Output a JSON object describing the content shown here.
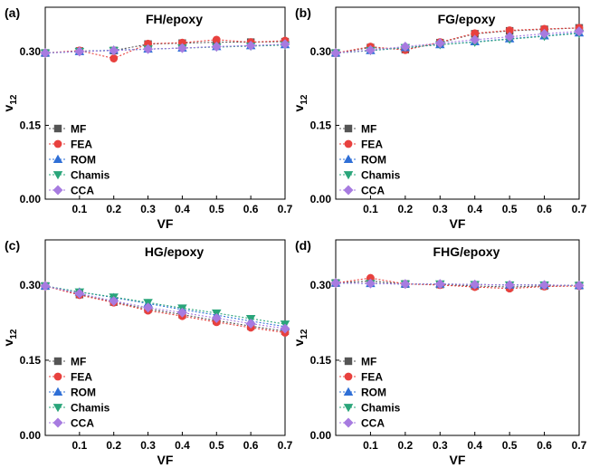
{
  "chart_data": [
    {
      "type": "line",
      "panel_label": "(a)",
      "title": "FH/epoxy",
      "xlabel": "VF",
      "ylabel_main": "v",
      "ylabel_sub": "12",
      "x": [
        0.0,
        0.1,
        0.2,
        0.3,
        0.4,
        0.5,
        0.6,
        0.7
      ],
      "xticks": [
        "0.1",
        "0.2",
        "0.3",
        "0.4",
        "0.5",
        "0.6",
        "0.7"
      ],
      "yticks": [
        "0.00",
        "0.15",
        "0.30"
      ],
      "xlim": [
        0.0,
        0.7
      ],
      "ylim": [
        0.0,
        0.39
      ],
      "legend_position": "lower-left",
      "series": [
        {
          "name": "MF",
          "color": "#555555",
          "marker": "square",
          "values": [
            0.297,
            0.301,
            0.302,
            0.315,
            0.317,
            0.319,
            0.319,
            0.32
          ]
        },
        {
          "name": "FEA",
          "color": "#e8413e",
          "marker": "circle",
          "values": [
            0.297,
            0.302,
            0.286,
            0.316,
            0.318,
            0.324,
            0.319,
            0.322
          ]
        },
        {
          "name": "ROM",
          "color": "#2f6fd6",
          "marker": "triangle-up",
          "values": [
            0.297,
            0.3,
            0.303,
            0.305,
            0.307,
            0.31,
            0.312,
            0.314
          ]
        },
        {
          "name": "Chamis",
          "color": "#2aa57a",
          "marker": "triangle-down",
          "values": [
            0.297,
            0.3,
            0.302,
            0.305,
            0.307,
            0.309,
            0.311,
            0.313
          ]
        },
        {
          "name": "CCA",
          "color": "#a77be0",
          "marker": "diamond",
          "values": [
            0.297,
            0.3,
            0.302,
            0.305,
            0.307,
            0.31,
            0.312,
            0.315
          ]
        }
      ]
    },
    {
      "type": "line",
      "panel_label": "(b)",
      "title": "FG/epoxy",
      "xlabel": "VF",
      "ylabel_main": "v",
      "ylabel_sub": "12",
      "x": [
        0.0,
        0.1,
        0.2,
        0.3,
        0.4,
        0.5,
        0.6,
        0.7
      ],
      "xticks": [
        "0.1",
        "0.2",
        "0.3",
        "0.4",
        "0.5",
        "0.6",
        "0.7"
      ],
      "yticks": [
        "0.00",
        "0.15",
        "0.30"
      ],
      "xlim": [
        0.0,
        0.7
      ],
      "ylim": [
        0.0,
        0.39
      ],
      "legend_position": "lower-left",
      "series": [
        {
          "name": "MF",
          "color": "#555555",
          "marker": "square",
          "values": [
            0.297,
            0.308,
            0.304,
            0.318,
            0.336,
            0.342,
            0.345,
            0.348
          ]
        },
        {
          "name": "FEA",
          "color": "#e8413e",
          "marker": "circle",
          "values": [
            0.297,
            0.31,
            0.303,
            0.319,
            0.337,
            0.343,
            0.346,
            0.348
          ]
        },
        {
          "name": "ROM",
          "color": "#2f6fd6",
          "marker": "triangle-up",
          "values": [
            0.297,
            0.302,
            0.308,
            0.314,
            0.32,
            0.326,
            0.332,
            0.338
          ]
        },
        {
          "name": "Chamis",
          "color": "#2aa57a",
          "marker": "triangle-down",
          "values": [
            0.297,
            0.302,
            0.308,
            0.314,
            0.319,
            0.325,
            0.331,
            0.337
          ]
        },
        {
          "name": "CCA",
          "color": "#a77be0",
          "marker": "diamond",
          "values": [
            0.297,
            0.303,
            0.31,
            0.317,
            0.324,
            0.33,
            0.336,
            0.341
          ]
        }
      ]
    },
    {
      "type": "line",
      "panel_label": "(c)",
      "title": "HG/epoxy",
      "xlabel": "VF",
      "ylabel_main": "v",
      "ylabel_sub": "12",
      "x": [
        0.0,
        0.1,
        0.2,
        0.3,
        0.4,
        0.5,
        0.6,
        0.7
      ],
      "xticks": [
        "0.1",
        "0.2",
        "0.3",
        "0.4",
        "0.5",
        "0.6",
        "0.7"
      ],
      "yticks": [
        "0.00",
        "0.15",
        "0.30"
      ],
      "xlim": [
        0.0,
        0.7
      ],
      "ylim": [
        0.0,
        0.39
      ],
      "legend_position": "lower-left",
      "series": [
        {
          "name": "MF",
          "color": "#555555",
          "marker": "square",
          "values": [
            0.298,
            0.281,
            0.266,
            0.252,
            0.241,
            0.229,
            0.218,
            0.208
          ]
        },
        {
          "name": "FEA",
          "color": "#e8413e",
          "marker": "circle",
          "values": [
            0.298,
            0.28,
            0.265,
            0.249,
            0.238,
            0.226,
            0.215,
            0.205
          ]
        },
        {
          "name": "ROM",
          "color": "#2f6fd6",
          "marker": "triangle-up",
          "values": [
            0.298,
            0.286,
            0.275,
            0.263,
            0.251,
            0.24,
            0.228,
            0.217
          ]
        },
        {
          "name": "Chamis",
          "color": "#2aa57a",
          "marker": "triangle-down",
          "values": [
            0.298,
            0.286,
            0.276,
            0.265,
            0.254,
            0.244,
            0.233,
            0.222
          ]
        },
        {
          "name": "CCA",
          "color": "#a77be0",
          "marker": "diamond",
          "values": [
            0.298,
            0.283,
            0.268,
            0.255,
            0.245,
            0.234,
            0.223,
            0.213
          ]
        }
      ]
    },
    {
      "type": "line",
      "panel_label": "(d)",
      "title": "FHG/epoxy",
      "xlabel": "VF",
      "ylabel_main": "v",
      "ylabel_sub": "12",
      "x": [
        0.0,
        0.1,
        0.2,
        0.3,
        0.4,
        0.5,
        0.6,
        0.7
      ],
      "xticks": [
        "0.1",
        "0.2",
        "0.3",
        "0.4",
        "0.5",
        "0.6",
        "0.7"
      ],
      "yticks": [
        "0.00",
        "0.15",
        "0.30"
      ],
      "xlim": [
        0.0,
        0.7
      ],
      "ylim": [
        0.0,
        0.39
      ],
      "legend_position": "lower-left",
      "series": [
        {
          "name": "MF",
          "color": "#555555",
          "marker": "square",
          "values": [
            0.304,
            0.308,
            0.302,
            0.301,
            0.298,
            0.296,
            0.298,
            0.299
          ]
        },
        {
          "name": "FEA",
          "color": "#e8413e",
          "marker": "circle",
          "values": [
            0.304,
            0.314,
            0.302,
            0.3,
            0.296,
            0.293,
            0.297,
            0.298
          ]
        },
        {
          "name": "ROM",
          "color": "#2f6fd6",
          "marker": "triangle-up",
          "values": [
            0.304,
            0.303,
            0.302,
            0.302,
            0.301,
            0.3,
            0.3,
            0.299
          ]
        },
        {
          "name": "Chamis",
          "color": "#2aa57a",
          "marker": "triangle-down",
          "values": [
            0.304,
            0.303,
            0.302,
            0.302,
            0.301,
            0.3,
            0.3,
            0.299
          ]
        },
        {
          "name": "CCA",
          "color": "#a77be0",
          "marker": "diamond",
          "values": [
            0.304,
            0.303,
            0.302,
            0.302,
            0.301,
            0.3,
            0.3,
            0.299
          ]
        }
      ]
    }
  ]
}
